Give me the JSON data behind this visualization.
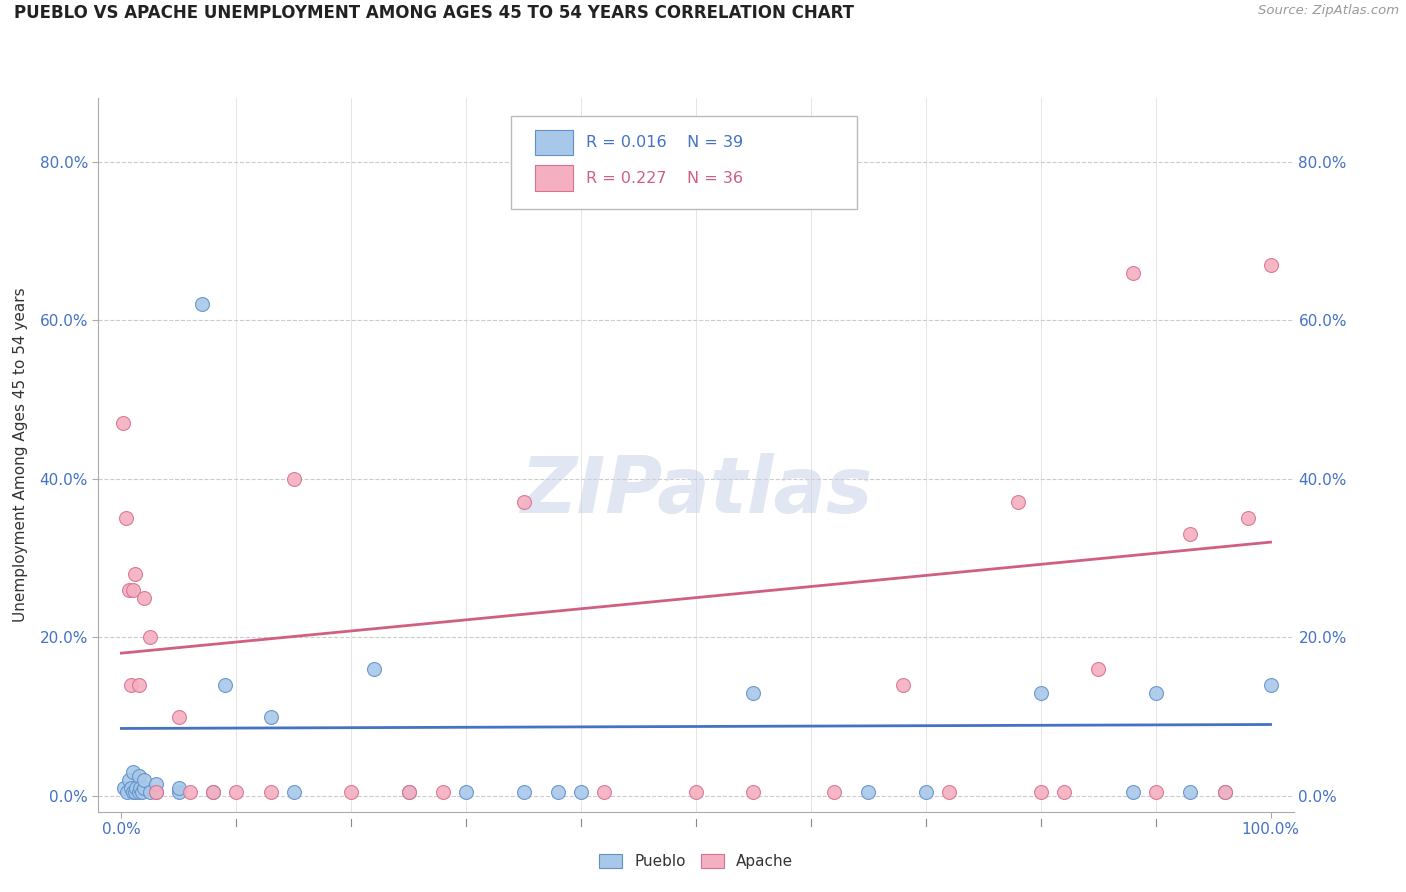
{
  "title": "PUEBLO VS APACHE UNEMPLOYMENT AMONG AGES 45 TO 54 YEARS CORRELATION CHART",
  "source": "Source: ZipAtlas.com",
  "ylabel": "Unemployment Among Ages 45 to 54 years",
  "pueblo_R": "R = 0.016",
  "pueblo_N": "N = 39",
  "apache_R": "R = 0.227",
  "apache_N": "N = 36",
  "pueblo_color": "#a8c8ea",
  "apache_color": "#f4b0c0",
  "pueblo_edge_color": "#6090c8",
  "apache_edge_color": "#d87090",
  "pueblo_line_color": "#4472C4",
  "apache_line_color": "#d06080",
  "tick_color": "#4472C4",
  "watermark_color": "#c8d4e8",
  "pueblo_x": [
    0.002,
    0.005,
    0.007,
    0.008,
    0.01,
    0.01,
    0.012,
    0.013,
    0.015,
    0.015,
    0.016,
    0.018,
    0.02,
    0.02,
    0.025,
    0.03,
    0.03,
    0.05,
    0.05,
    0.07,
    0.08,
    0.09,
    0.13,
    0.15,
    0.22,
    0.25,
    0.3,
    0.35,
    0.38,
    0.4,
    0.55,
    0.65,
    0.7,
    0.8,
    0.88,
    0.9,
    0.93,
    0.96,
    1.0
  ],
  "pueblo_y": [
    0.01,
    0.005,
    0.02,
    0.01,
    0.005,
    0.03,
    0.005,
    0.01,
    0.005,
    0.025,
    0.01,
    0.005,
    0.01,
    0.02,
    0.005,
    0.005,
    0.015,
    0.005,
    0.01,
    0.62,
    0.005,
    0.14,
    0.1,
    0.005,
    0.16,
    0.005,
    0.005,
    0.005,
    0.005,
    0.005,
    0.13,
    0.005,
    0.005,
    0.13,
    0.005,
    0.13,
    0.005,
    0.005,
    0.14
  ],
  "apache_x": [
    0.001,
    0.004,
    0.007,
    0.008,
    0.01,
    0.012,
    0.015,
    0.02,
    0.025,
    0.03,
    0.05,
    0.06,
    0.08,
    0.1,
    0.13,
    0.15,
    0.2,
    0.25,
    0.28,
    0.35,
    0.42,
    0.5,
    0.55,
    0.62,
    0.68,
    0.72,
    0.78,
    0.8,
    0.82,
    0.85,
    0.88,
    0.9,
    0.93,
    0.96,
    0.98,
    1.0
  ],
  "apache_y": [
    0.47,
    0.35,
    0.26,
    0.14,
    0.26,
    0.28,
    0.14,
    0.25,
    0.2,
    0.005,
    0.1,
    0.005,
    0.005,
    0.005,
    0.005,
    0.4,
    0.005,
    0.005,
    0.005,
    0.37,
    0.005,
    0.005,
    0.005,
    0.005,
    0.14,
    0.005,
    0.37,
    0.005,
    0.005,
    0.16,
    0.66,
    0.005,
    0.33,
    0.005,
    0.35,
    0.67
  ],
  "pueblo_trend": [
    0.085,
    0.09
  ],
  "apache_trend": [
    0.18,
    0.32
  ],
  "xlim": [
    -0.02,
    1.02
  ],
  "ylim": [
    -0.02,
    0.88
  ],
  "yticks": [
    0.0,
    0.2,
    0.4,
    0.6,
    0.8
  ],
  "ytick_labels": [
    "0.0%",
    "20.0%",
    "40.0%",
    "60.0%",
    "80.0%"
  ],
  "background_color": "#ffffff",
  "grid_color": "#cccccc",
  "marker_size": 100
}
